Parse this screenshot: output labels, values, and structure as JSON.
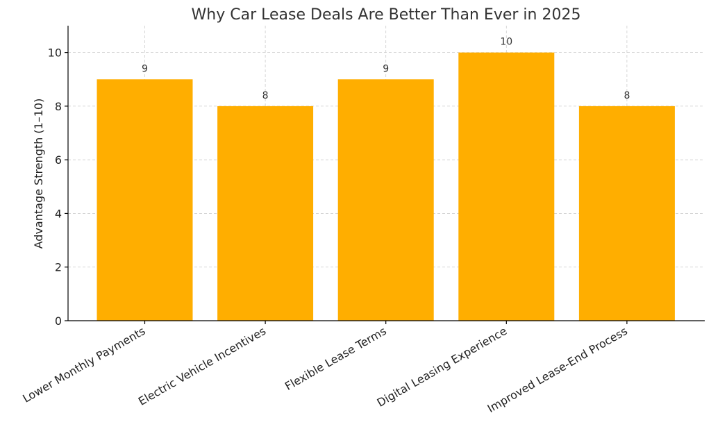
{
  "chart_data": {
    "type": "bar",
    "title": "Why Car Lease Deals Are Better Than Ever in 2025",
    "xlabel": "",
    "ylabel": "Advantage Strength (1–10)",
    "categories": [
      "Lower Monthly Payments",
      "Electric Vehicle Incentives",
      "Flexible Lease Terms",
      "Digital Leasing Experience",
      "Improved Lease-End Process"
    ],
    "values": [
      9,
      8,
      9,
      10,
      8
    ],
    "ylim": [
      0,
      11
    ],
    "yticks": [
      0,
      2,
      4,
      6,
      8,
      10
    ],
    "grid": true,
    "bar_color": "#FFAE00",
    "data_labels": true
  }
}
